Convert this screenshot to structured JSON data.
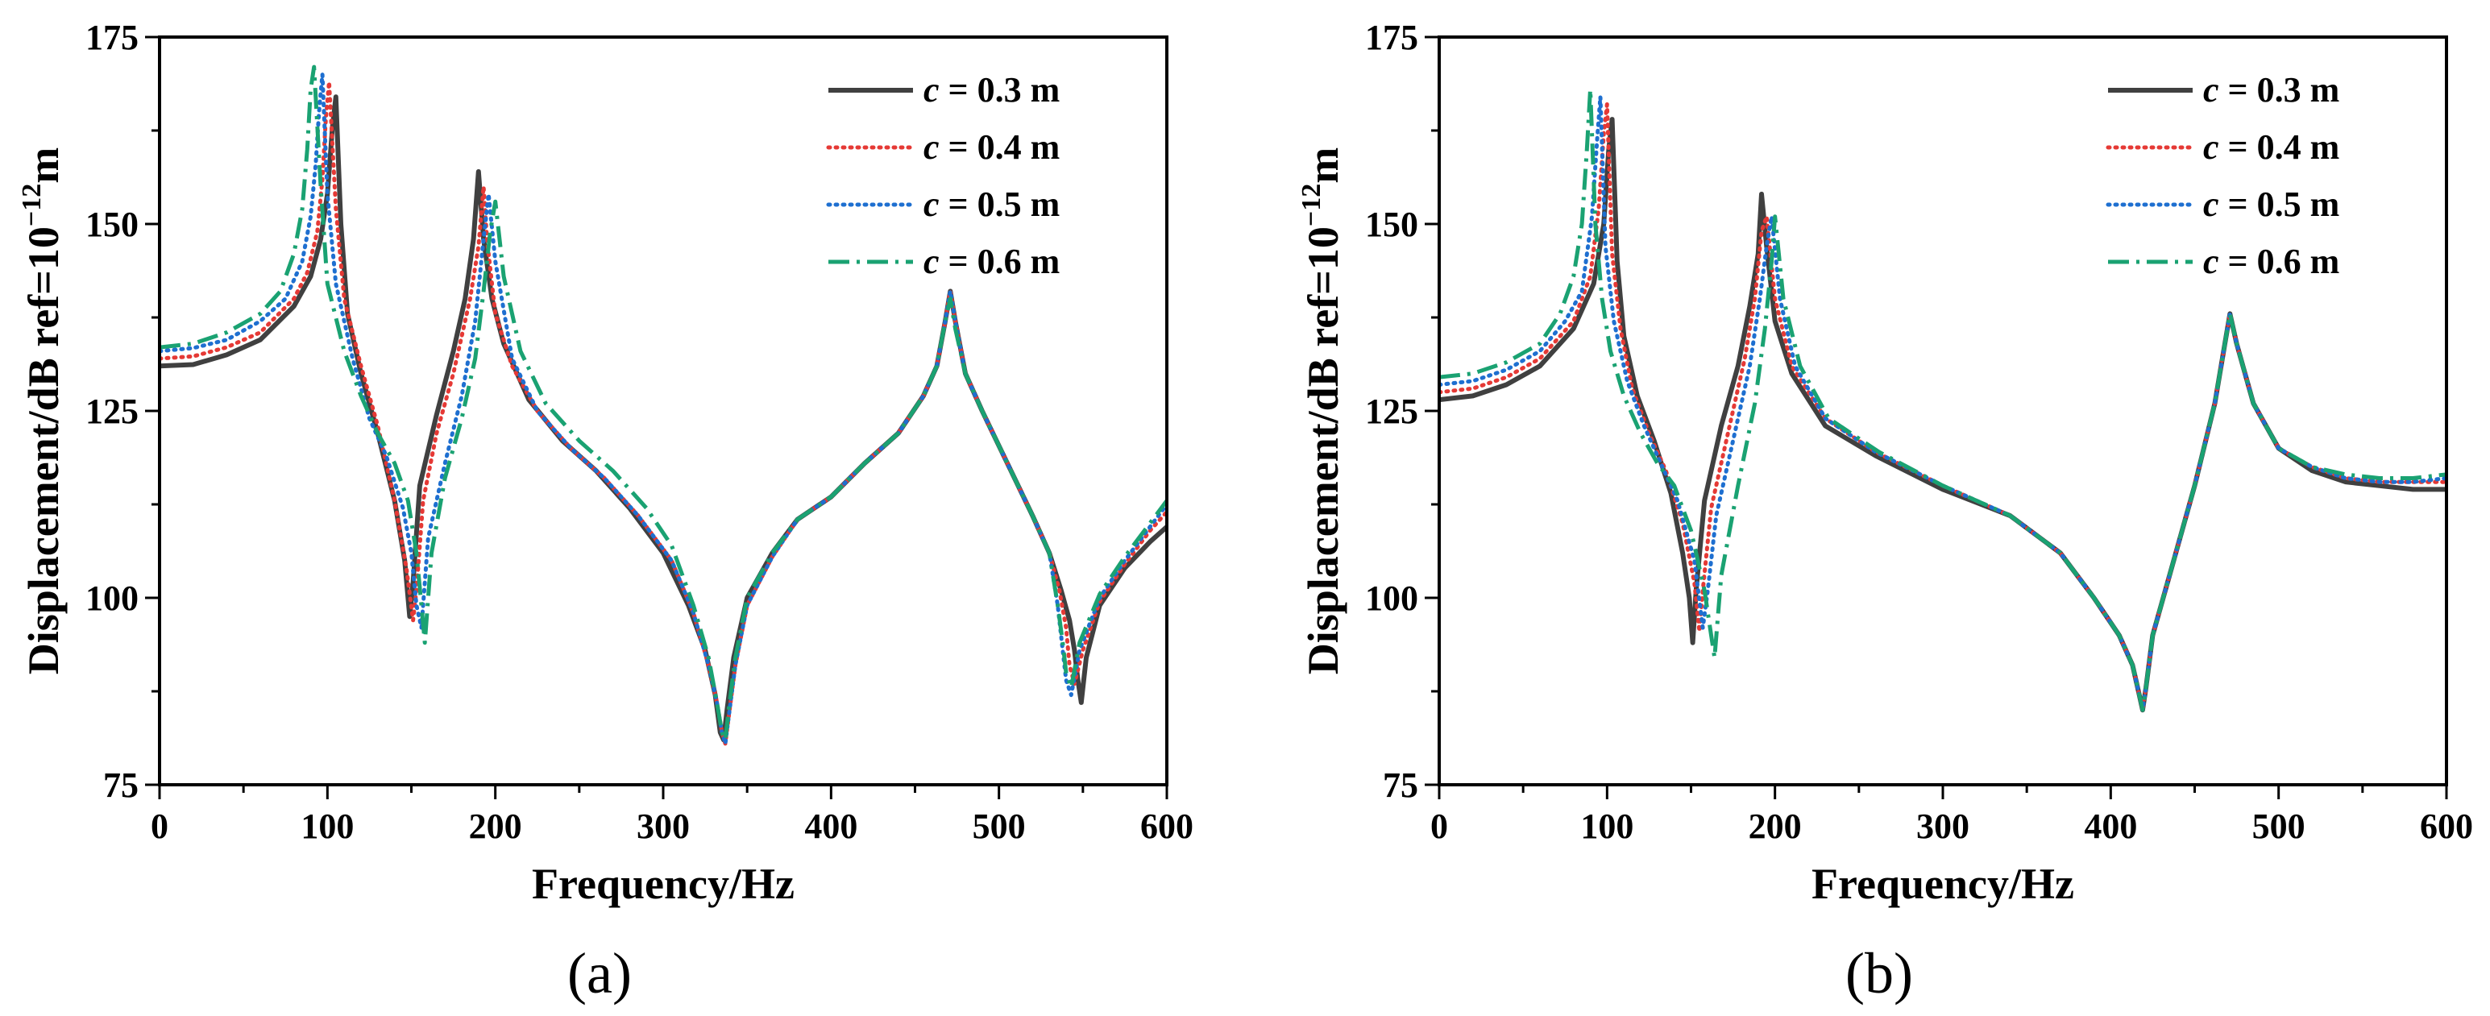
{
  "chart_data": [
    {
      "type": "line",
      "panel_label": "(a)",
      "xlabel": "Frequency/Hz",
      "ylabel": "Displacement/dB ref=10",
      "ylabel_exp": "−12",
      "ylabel_unit": "m",
      "xlim": [
        0,
        600
      ],
      "ylim": [
        75,
        175
      ],
      "xticks": [
        "0",
        "100",
        "200",
        "300",
        "400",
        "500",
        "600"
      ],
      "yticks": [
        "75",
        "100",
        "125",
        "150",
        "175"
      ],
      "legend_position": "top-right",
      "series": [
        {
          "name": "c = 0.3 m",
          "var": "c",
          "label_rest": " = 0.3 m",
          "color": "#404040",
          "dash": "solid",
          "x": [
            0,
            20,
            40,
            60,
            80,
            90,
            96,
            100,
            103,
            105,
            108,
            112,
            120,
            130,
            140,
            146,
            149,
            151,
            155,
            165,
            175,
            182,
            187,
            190,
            193,
            198,
            205,
            220,
            240,
            260,
            280,
            300,
            315,
            325,
            331,
            334,
            336,
            338,
            342,
            350,
            365,
            380,
            400,
            420,
            440,
            455,
            463,
            468,
            471,
            474,
            480,
            490,
            505,
            520,
            530,
            537,
            542,
            545,
            547,
            549,
            552,
            560,
            575,
            590,
            600
          ],
          "y": [
            131,
            131.2,
            132.5,
            134.5,
            139,
            143,
            148,
            154,
            163,
            167,
            150,
            138,
            130,
            122,
            113,
            105,
            97.5,
            102,
            115,
            124.5,
            133,
            140,
            148,
            157,
            148,
            140,
            134,
            126.5,
            121,
            117,
            112,
            106,
            99,
            93,
            87,
            82,
            81,
            85,
            92,
            100,
            106,
            110.5,
            113.5,
            118,
            122,
            127,
            131,
            137,
            141,
            137,
            130,
            125,
            118,
            111,
            106,
            101,
            97,
            93,
            89,
            86,
            92,
            99,
            104,
            107.5,
            109.5
          ]
        },
        {
          "name": "c = 0.4 m",
          "var": "c",
          "label_rest": " = 0.4 m",
          "color": "#e53935",
          "dash": "dotted",
          "x": [
            0,
            20,
            40,
            60,
            80,
            88,
            94,
            97,
            99,
            101,
            105,
            110,
            120,
            130,
            140,
            147,
            151,
            153,
            157,
            165,
            175,
            185,
            190,
            193,
            195,
            200,
            210,
            225,
            245,
            265,
            285,
            305,
            318,
            327,
            332,
            335,
            337,
            339,
            343,
            350,
            365,
            380,
            400,
            420,
            440,
            455,
            463,
            468,
            471,
            474,
            480,
            490,
            505,
            520,
            530,
            536,
            540,
            542,
            545,
            550,
            560,
            575,
            590,
            600
          ],
          "y": [
            132,
            132.3,
            133.5,
            135.5,
            140,
            143.5,
            149,
            156,
            164,
            169,
            152,
            140,
            131,
            123,
            113,
            104,
            97,
            101,
            113,
            122,
            130,
            140,
            147,
            155,
            148,
            138,
            131,
            125,
            120,
            116,
            111,
            105,
            98,
            91,
            86,
            82,
            80.5,
            84,
            91,
            99,
            105.5,
            110.5,
            113.5,
            118,
            122,
            127,
            131,
            137,
            141,
            137,
            130,
            125,
            118,
            111,
            106,
            101,
            96,
            91,
            88.5,
            93,
            99.5,
            104.5,
            109,
            111.5
          ]
        },
        {
          "name": "c = 0.5 m",
          "var": "c",
          "label_rest": " = 0.5 m",
          "color": "#1e6fd0",
          "dash": "dotted",
          "x": [
            0,
            20,
            40,
            60,
            75,
            85,
            90,
            93,
            95,
            97,
            100,
            105,
            115,
            125,
            135,
            145,
            150,
            153,
            156,
            160,
            170,
            180,
            188,
            193,
            196,
            200,
            210,
            225,
            245,
            265,
            285,
            305,
            318,
            327,
            332,
            335,
            337,
            339,
            343,
            350,
            365,
            380,
            400,
            420,
            440,
            455,
            463,
            468,
            471,
            474,
            480,
            490,
            505,
            520,
            530,
            535,
            538,
            540,
            543,
            548,
            560,
            575,
            590,
            600
          ],
          "y": [
            133,
            133.4,
            134.5,
            137,
            140,
            145,
            151,
            158,
            165,
            170,
            154,
            142,
            132,
            124,
            119,
            112,
            106,
            99,
            96,
            108,
            118,
            127,
            137,
            148,
            154,
            145,
            132,
            125,
            120,
            116,
            111,
            105,
            98,
            91,
            86,
            82,
            80.5,
            84,
            91,
            99,
            105.5,
            110.5,
            113.5,
            118,
            122,
            127,
            131,
            137,
            141,
            137,
            130,
            125,
            118,
            111,
            106,
            99,
            93,
            89,
            87,
            93,
            100,
            105,
            109.5,
            112.5
          ]
        },
        {
          "name": "c = 0.6 m",
          "var": "c",
          "label_rest": " = 0.6 m",
          "color": "#1aa272",
          "dash": "dashdot",
          "x": [
            0,
            20,
            40,
            60,
            72,
            80,
            85,
            88,
            90,
            92,
            96,
            100,
            110,
            120,
            130,
            140,
            148,
            153,
            156,
            158,
            162,
            170,
            180,
            188,
            193,
            197,
            200,
            205,
            215,
            230,
            250,
            270,
            290,
            305,
            318,
            327,
            332,
            335,
            337,
            339,
            343,
            350,
            365,
            380,
            400,
            420,
            440,
            455,
            463,
            468,
            471,
            474,
            480,
            490,
            505,
            520,
            530,
            535,
            538,
            540,
            543,
            548,
            560,
            575,
            590,
            600
          ],
          "y": [
            133.5,
            134,
            135.5,
            138,
            141,
            146,
            152,
            160,
            168,
            171,
            155,
            142,
            133,
            127,
            122,
            118,
            113,
            106,
            99,
            94,
            106,
            116,
            124,
            132,
            141,
            149,
            153,
            143,
            133,
            126,
            121,
            117,
            112,
            107,
            99,
            92,
            86,
            82,
            81,
            85,
            92,
            100,
            106,
            110.5,
            113.5,
            118,
            122,
            127,
            131,
            137,
            140,
            136,
            130,
            125,
            118,
            111,
            106,
            99,
            94,
            90,
            88,
            94,
            100.5,
            105.5,
            110,
            113
          ]
        }
      ]
    },
    {
      "type": "line",
      "panel_label": "(b)",
      "xlabel": "Frequency/Hz",
      "ylabel": "Displacement/dB ref=10",
      "ylabel_exp": "−12",
      "ylabel_unit": "m",
      "xlim": [
        0,
        600
      ],
      "ylim": [
        75,
        175
      ],
      "xticks": [
        "0",
        "100",
        "200",
        "300",
        "400",
        "500",
        "600"
      ],
      "yticks": [
        "75",
        "100",
        "125",
        "150",
        "175"
      ],
      "legend_position": "top-right",
      "series": [
        {
          "name": "c = 0.3 m",
          "var": "c",
          "label_rest": " = 0.3 m",
          "color": "#404040",
          "dash": "solid",
          "x": [
            0,
            20,
            40,
            60,
            80,
            92,
            98,
            101,
            103,
            106,
            110,
            118,
            128,
            138,
            145,
            149,
            151,
            153,
            158,
            168,
            178,
            185,
            190,
            192,
            195,
            200,
            210,
            230,
            260,
            300,
            340,
            370,
            390,
            405,
            413,
            417,
            419,
            421,
            425,
            435,
            450,
            462,
            468,
            471,
            475,
            485,
            500,
            520,
            540,
            560,
            580,
            600
          ],
          "y": [
            126.5,
            127,
            128.5,
            131,
            136,
            142,
            150,
            160,
            164,
            145,
            135,
            127,
            121,
            114,
            106,
            100,
            94,
            101,
            113,
            123,
            131,
            139,
            146,
            154,
            147,
            137,
            130,
            123,
            119,
            114.5,
            111,
            106,
            100,
            95,
            91,
            87,
            85,
            88,
            95,
            103,
            115,
            126,
            134,
            138,
            134,
            126,
            120,
            117,
            115.5,
            115,
            114.5,
            114.5
          ]
        },
        {
          "name": "c = 0.4 m",
          "var": "c",
          "label_rest": " = 0.4 m",
          "color": "#e53935",
          "dash": "dotted",
          "x": [
            0,
            20,
            40,
            60,
            80,
            90,
            95,
            98,
            100,
            103,
            108,
            115,
            125,
            135,
            145,
            152,
            155,
            157,
            162,
            172,
            182,
            188,
            192,
            195,
            200,
            210,
            230,
            260,
            300,
            340,
            370,
            390,
            405,
            413,
            417,
            419,
            421,
            425,
            435,
            450,
            462,
            468,
            471,
            475,
            485,
            500,
            520,
            540,
            560,
            580,
            600
          ],
          "y": [
            127.5,
            128,
            129.5,
            132,
            137,
            143,
            152,
            162,
            166,
            146,
            136,
            128,
            122,
            117,
            110,
            102,
            95.5,
            101,
            112,
            122,
            132,
            140,
            149,
            151,
            140,
            131,
            124,
            119.5,
            115,
            111,
            106,
            100,
            95,
            91,
            87,
            85,
            88,
            95,
            103,
            115,
            126,
            134,
            138,
            134,
            126,
            120,
            117.5,
            116,
            115.5,
            115.5,
            115.5
          ]
        },
        {
          "name": "c = 0.5 m",
          "var": "c",
          "label_rest": " = 0.5 m",
          "color": "#1e6fd0",
          "dash": "dotted",
          "x": [
            0,
            20,
            40,
            60,
            75,
            85,
            91,
            94,
            96,
            99,
            104,
            112,
            122,
            132,
            142,
            152,
            157,
            160,
            165,
            175,
            185,
            191,
            195,
            198,
            203,
            212,
            230,
            260,
            300,
            340,
            370,
            390,
            405,
            413,
            417,
            419,
            421,
            425,
            435,
            450,
            462,
            468,
            471,
            475,
            485,
            500,
            520,
            540,
            560,
            580,
            600
          ],
          "y": [
            128.5,
            129,
            130.5,
            133,
            137,
            141,
            151,
            161,
            167,
            147,
            137,
            129,
            123,
            118,
            113,
            105,
            96,
            101,
            111,
            121,
            131,
            140,
            147,
            151,
            140,
            131,
            124,
            119.5,
            115,
            111,
            106,
            100,
            95,
            91,
            87,
            85,
            88,
            95,
            103,
            115,
            126,
            134,
            138,
            134,
            126,
            120,
            117.5,
            116,
            115.5,
            115.5,
            116
          ]
        },
        {
          "name": "c = 0.6 m",
          "var": "c",
          "label_rest": " = 0.6 m",
          "color": "#1aa272",
          "dash": "dashdot",
          "x": [
            0,
            20,
            40,
            60,
            72,
            80,
            85,
            88,
            90,
            93,
            97,
            102,
            110,
            120,
            130,
            140,
            150,
            158,
            162,
            164,
            168,
            178,
            188,
            194,
            198,
            200,
            205,
            215,
            232,
            262,
            300,
            340,
            370,
            390,
            405,
            413,
            417,
            419,
            421,
            425,
            435,
            450,
            462,
            468,
            471,
            475,
            485,
            500,
            520,
            540,
            560,
            580,
            600
          ],
          "y": [
            129.5,
            130,
            131.5,
            134,
            138,
            143,
            150,
            160,
            168,
            150,
            140,
            133,
            127,
            122,
            118,
            115,
            109,
            101,
            95,
            92,
            103,
            115,
            126,
            136,
            145,
            151,
            140,
            131,
            124,
            119.5,
            115,
            111,
            106,
            100,
            95,
            91,
            87,
            85,
            88,
            95,
            103,
            115,
            126,
            134,
            138,
            134,
            126,
            120,
            117.5,
            116.5,
            116,
            116,
            116.5
          ]
        }
      ]
    }
  ]
}
